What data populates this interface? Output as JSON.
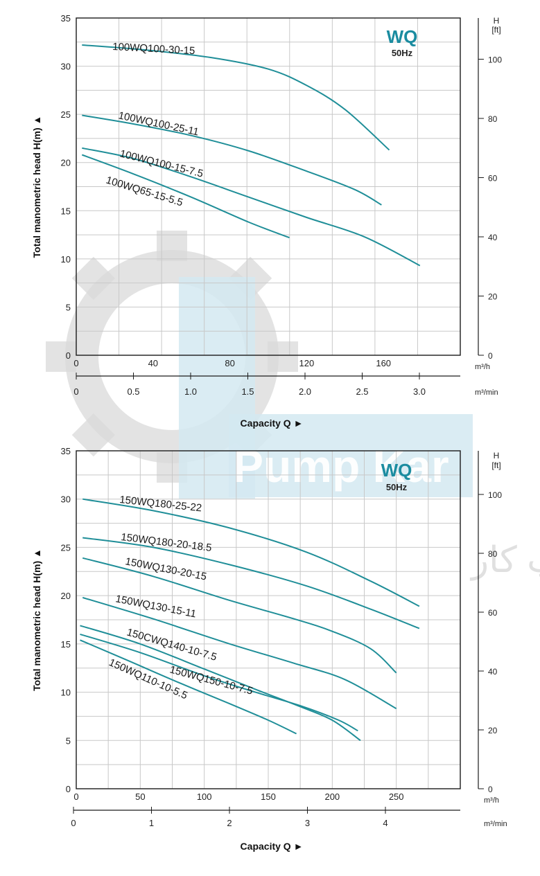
{
  "colors": {
    "curve": "#1f8e98",
    "brand": "#1b8ca0",
    "grid": "#c8c8c8",
    "axis": "#1a1a1a",
    "watermark_gray": "#d9d9d9",
    "watermark_blue": "#d3e9f1"
  },
  "watermark": {
    "logo_text": "Pump Kar",
    "tagline": "گروه صنعتی پمپ کار"
  },
  "chart_data": [
    {
      "type": "line",
      "brand": "WQ",
      "frequency": "50Hz",
      "ylabel": "Total manometric head H(m)",
      "xlabel": "Capacity Q",
      "y2_label": [
        "H",
        "[ft]"
      ],
      "ylim": [
        0,
        35
      ],
      "y_ticks": [
        0,
        5,
        10,
        15,
        20,
        25,
        30,
        35
      ],
      "xlim": [
        0,
        200
      ],
      "x_ticks": [
        0,
        40,
        80,
        120,
        160
      ],
      "x_unit": "m³/h",
      "x2_ticks": [
        "0",
        "0.5",
        "1.0",
        "1.5",
        "2.0",
        "2.5",
        "3.0"
      ],
      "x2_unit": "m³/min",
      "ft_ticks": [
        "0",
        "20",
        "40",
        "60",
        "80",
        "100"
      ],
      "grid": true,
      "series": [
        {
          "name": "100WQ100-30-15",
          "points": [
            [
              3,
              32.2
            ],
            [
              35,
              31.7
            ],
            [
              70,
              30.9
            ],
            [
              100,
              29.7
            ],
            [
              120,
              28.0
            ],
            [
              140,
              25.5
            ],
            [
              163,
              21.3
            ]
          ]
        },
        {
          "name": "100WQ100-25-11",
          "points": [
            [
              3,
              24.9
            ],
            [
              30,
              24.0
            ],
            [
              60,
              22.8
            ],
            [
              90,
              21.2
            ],
            [
              120,
              19.1
            ],
            [
              145,
              17.2
            ],
            [
              159,
              15.6
            ]
          ]
        },
        {
          "name": "100WQ100-15-7.5",
          "points": [
            [
              3,
              21.5
            ],
            [
              30,
              20.4
            ],
            [
              60,
              18.5
            ],
            [
              90,
              16.4
            ],
            [
              120,
              14.3
            ],
            [
              150,
              12.3
            ],
            [
              179,
              9.3
            ]
          ]
        },
        {
          "name": "100WQ65-15-5.5",
          "points": [
            [
              3,
              20.8
            ],
            [
              30,
              18.8
            ],
            [
              60,
              16.4
            ],
            [
              90,
              13.8
            ],
            [
              111,
              12.2
            ]
          ]
        }
      ]
    },
    {
      "type": "line",
      "brand": "WQ",
      "frequency": "50Hz",
      "ylabel": "Total manometric head H(m)",
      "xlabel": "Capacity Q",
      "y2_label": [
        "H",
        "[ft]"
      ],
      "ylim": [
        0,
        35
      ],
      "y_ticks": [
        0,
        5,
        10,
        15,
        20,
        25,
        30,
        35
      ],
      "xlim": [
        0,
        300
      ],
      "x_ticks": [
        0,
        50,
        100,
        150,
        200,
        250
      ],
      "x_unit": "m³/h",
      "x2_ticks": [
        "0",
        "1",
        "2",
        "3",
        "4"
      ],
      "x2_unit": "m³/min",
      "ft_ticks": [
        "0",
        "20",
        "40",
        "60",
        "80",
        "100"
      ],
      "grid": true,
      "series": [
        {
          "name": "150WQ180-25-22",
          "points": [
            [
              5,
              30.0
            ],
            [
              60,
              28.8
            ],
            [
              120,
              27.0
            ],
            [
              180,
              24.5
            ],
            [
              230,
              21.5
            ],
            [
              268,
              18.9
            ]
          ]
        },
        {
          "name": "150WQ180-20-18.5",
          "points": [
            [
              5,
              26.0
            ],
            [
              60,
              25.0
            ],
            [
              120,
              23.2
            ],
            [
              180,
              21.0
            ],
            [
              230,
              18.6
            ],
            [
              268,
              16.6
            ]
          ]
        },
        {
          "name": "150WQ130-20-15",
          "points": [
            [
              5,
              23.9
            ],
            [
              60,
              22.0
            ],
            [
              120,
              19.5
            ],
            [
              170,
              17.6
            ],
            [
              200,
              16.3
            ],
            [
              230,
              14.5
            ],
            [
              250,
              12.0
            ]
          ]
        },
        {
          "name": "150WQ130-15-11",
          "points": [
            [
              5,
              19.8
            ],
            [
              60,
              17.6
            ],
            [
              120,
              15.0
            ],
            [
              170,
              13.0
            ],
            [
              210,
              11.3
            ],
            [
              250,
              8.3
            ]
          ]
        },
        {
          "name": "150CWQ140-10-7.5",
          "points": [
            [
              3,
              16.9
            ],
            [
              50,
              15.0
            ],
            [
              100,
              12.4
            ],
            [
              140,
              10.3
            ],
            [
              175,
              8.5
            ],
            [
              200,
              7.1
            ],
            [
              222,
              5.0
            ]
          ]
        },
        {
          "name": "150WQ150-10-7.5",
          "points": [
            [
              3,
              16.0
            ],
            [
              50,
              14.1
            ],
            [
              100,
              11.7
            ],
            [
              140,
              10.0
            ],
            [
              175,
              8.6
            ],
            [
              205,
              7.1
            ],
            [
              220,
              6.0
            ]
          ]
        },
        {
          "name": "150WQ110-10-5.5",
          "points": [
            [
              3,
              15.4
            ],
            [
              40,
              13.3
            ],
            [
              80,
              11.0
            ],
            [
              120,
              8.8
            ],
            [
              150,
              7.1
            ],
            [
              172,
              5.7
            ]
          ]
        }
      ]
    }
  ]
}
